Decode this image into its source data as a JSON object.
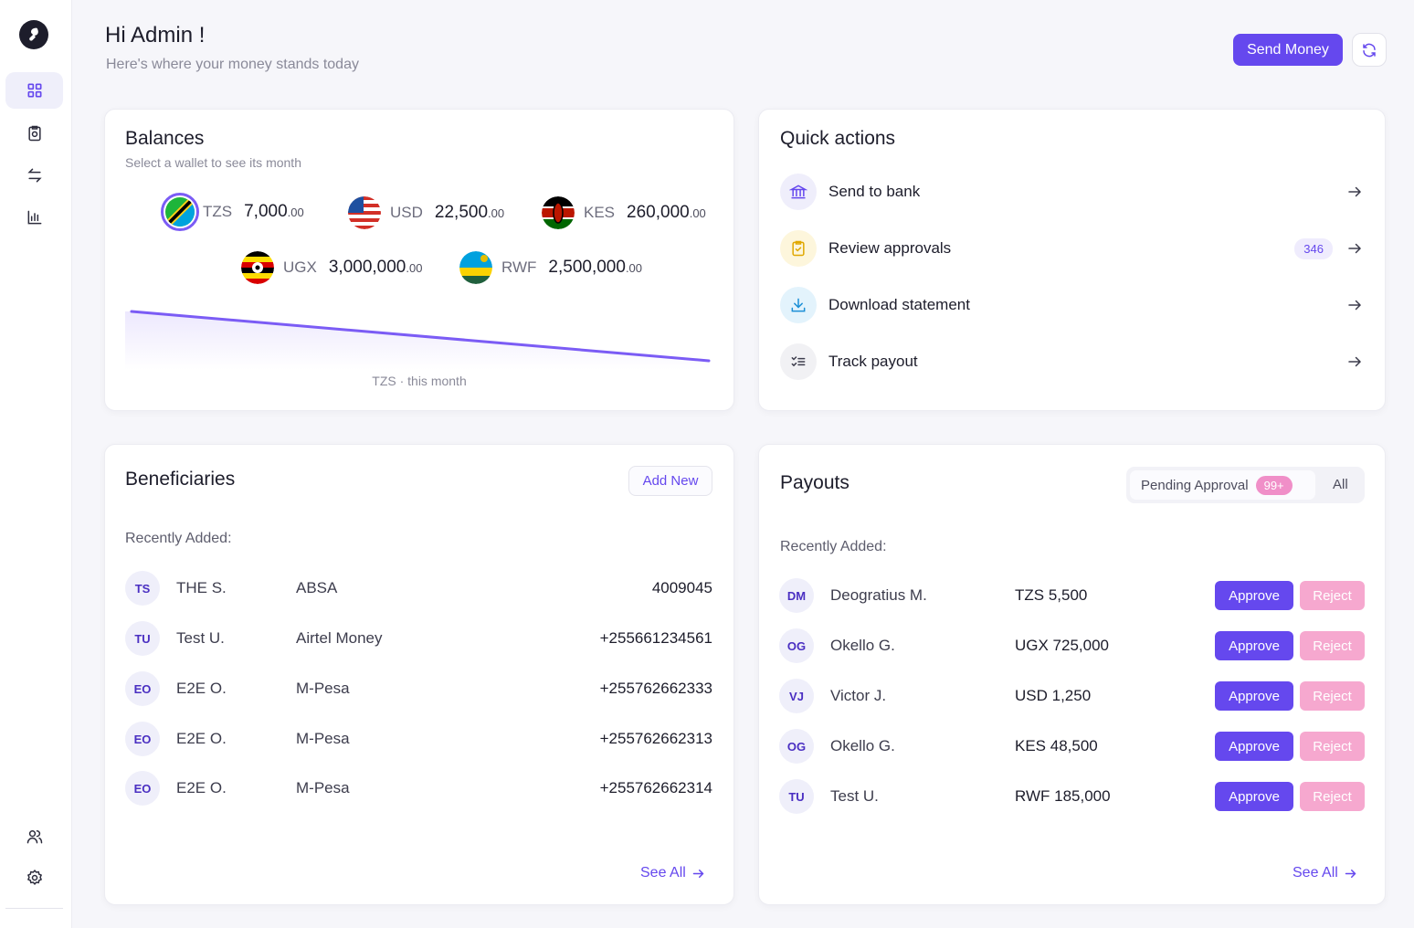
{
  "header": {
    "greeting": "Hi Admin !",
    "subtitle": "Here's where your money stands today",
    "send_money_label": "Send Money"
  },
  "sidebar": {
    "items": [
      {
        "name": "dashboard",
        "icon": "grid-icon",
        "active": true
      },
      {
        "name": "approvals",
        "icon": "clipboard-icon",
        "active": false
      },
      {
        "name": "transfers",
        "icon": "transfer-arrows-icon",
        "active": false
      },
      {
        "name": "reports",
        "icon": "bar-chart-icon",
        "active": false
      }
    ],
    "bottom_items": [
      {
        "name": "users",
        "icon": "users-icon"
      },
      {
        "name": "settings",
        "icon": "gear-icon"
      }
    ]
  },
  "balances": {
    "title": "Balances",
    "subtitle": "Select a wallet to see its month",
    "wallets": [
      {
        "currency": "TZS",
        "amount": "7,000",
        "decimals": ".00",
        "flag": "tanzania-flag-icon",
        "selected": true
      },
      {
        "currency": "USD",
        "amount": "22,500",
        "decimals": ".00",
        "flag": "usa-flag-icon",
        "selected": false
      },
      {
        "currency": "KES",
        "amount": "260,000",
        "decimals": ".00",
        "flag": "kenya-flag-icon",
        "selected": false
      },
      {
        "currency": "UGX",
        "amount": "3,000,000",
        "decimals": ".00",
        "flag": "uganda-flag-icon",
        "selected": false
      },
      {
        "currency": "RWF",
        "amount": "2,500,000",
        "decimals": ".00",
        "flag": "rwanda-flag-icon",
        "selected": false
      }
    ],
    "chart_caption": "TZS · this month",
    "line_color": "#7b5cf5"
  },
  "quick_actions": {
    "title": "Quick actions",
    "items": [
      {
        "label": "Send to bank",
        "icon": "bank-icon",
        "badge": ""
      },
      {
        "label": "Review approvals",
        "icon": "clipboard-check-icon",
        "badge": "346"
      },
      {
        "label": "Download statement",
        "icon": "download-icon",
        "badge": ""
      },
      {
        "label": "Track payout",
        "icon": "checklist-icon",
        "badge": ""
      }
    ]
  },
  "beneficiaries": {
    "title": "Beneficiaries",
    "add_new_label": "Add New",
    "recent_label": "Recently Added:",
    "rows": [
      {
        "initials": "TS",
        "name": "THE S.",
        "bank": "ABSA",
        "account": "4009045"
      },
      {
        "initials": "TU",
        "name": "Test U.",
        "bank": "Airtel Money",
        "account": "+255661234561"
      },
      {
        "initials": "EO",
        "name": "E2E O.",
        "bank": "M-Pesa",
        "account": "+255762662333"
      },
      {
        "initials": "EO",
        "name": "E2E O.",
        "bank": "M-Pesa",
        "account": "+255762662313"
      },
      {
        "initials": "EO",
        "name": "E2E O.",
        "bank": "M-Pesa",
        "account": "+255762662314"
      }
    ],
    "see_all_label": "See All"
  },
  "payouts": {
    "title": "Payouts",
    "tab_pending": "Pending Approval",
    "tab_pending_badge": "99+",
    "tab_all": "All",
    "recent_label": "Recently Added:",
    "approve_label": "Approve",
    "reject_label": "Reject",
    "rows": [
      {
        "initials": "DM",
        "name": "Deogratius M.",
        "amount": "TZS 5,500"
      },
      {
        "initials": "OG",
        "name": "Okello G.",
        "amount": "UGX 725,000"
      },
      {
        "initials": "VJ",
        "name": "Victor J.",
        "amount": "USD 1,250"
      },
      {
        "initials": "OG",
        "name": "Okello G.",
        "amount": "KES 48,500"
      },
      {
        "initials": "TU",
        "name": "Test U.",
        "amount": "RWF 185,000"
      }
    ],
    "see_all_label": "See All"
  },
  "colors": {
    "accent": "#6548ee",
    "reject": "#f6a8cf",
    "badge_pink": "#f08fc8"
  }
}
